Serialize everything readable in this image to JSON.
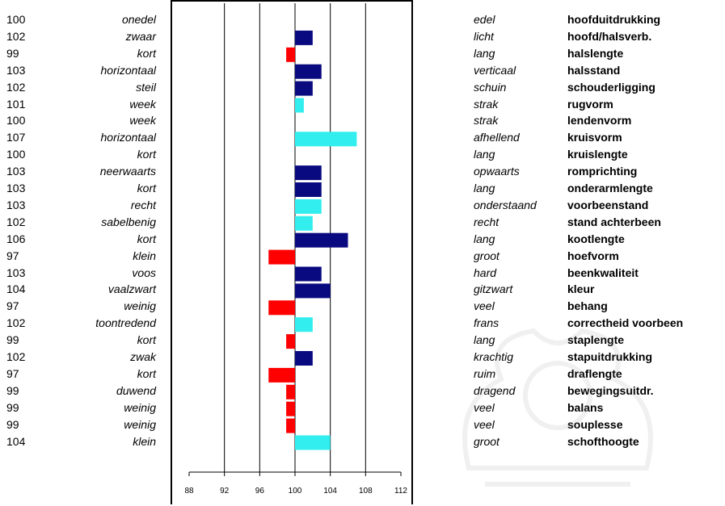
{
  "chart_data": {
    "type": "bar",
    "orientation": "horizontal",
    "baseline": 100,
    "xlim": [
      88,
      112
    ],
    "xticks": [
      "88",
      "92",
      "96",
      "100",
      "104",
      "108",
      "112"
    ],
    "grid": "vertical",
    "legend": "none",
    "rows": [
      {
        "value": 100,
        "score": "100",
        "left": "onedel",
        "right": "edel",
        "trait": "hoofduitdrukking",
        "color": "#0a0a80"
      },
      {
        "value": 102,
        "score": "102",
        "left": "zwaar",
        "right": "licht",
        "trait": "hoofd/halsverb.",
        "color": "#0a0a80"
      },
      {
        "value": 99,
        "score": "99",
        "left": "kort",
        "right": "lang",
        "trait": "halslengte",
        "color": "#ff0000"
      },
      {
        "value": 103,
        "score": "103",
        "left": "horizontaal",
        "right": "verticaal",
        "trait": "halsstand",
        "color": "#0a0a80"
      },
      {
        "value": 102,
        "score": "102",
        "left": "steil",
        "right": "schuin",
        "trait": "schouderligging",
        "color": "#0a0a80"
      },
      {
        "value": 101,
        "score": "101",
        "left": "week",
        "right": "strak",
        "trait": "rugvorm",
        "color": "#33eeee"
      },
      {
        "value": 100,
        "score": "100",
        "left": "week",
        "right": "strak",
        "trait": "lendenvorm",
        "color": "#33eeee"
      },
      {
        "value": 107,
        "score": "107",
        "left": "horizontaal",
        "right": "afhellend",
        "trait": "kruisvorm",
        "color": "#33eeee"
      },
      {
        "value": 100,
        "score": "100",
        "left": "kort",
        "right": "lang",
        "trait": "kruislengte",
        "color": "#33eeee"
      },
      {
        "value": 103,
        "score": "103",
        "left": "neerwaarts",
        "right": "opwaarts",
        "trait": "romprichting",
        "color": "#0a0a80"
      },
      {
        "value": 103,
        "score": "103",
        "left": "kort",
        "right": "lang",
        "trait": "onderarmlengte",
        "color": "#0a0a80"
      },
      {
        "value": 103,
        "score": "103",
        "left": "recht",
        "right": "onderstaand",
        "trait": "voorbeenstand",
        "color": "#33eeee"
      },
      {
        "value": 102,
        "score": "102",
        "left": "sabelbenig",
        "right": "recht",
        "trait": "stand achterbeen",
        "color": "#33eeee"
      },
      {
        "value": 106,
        "score": "106",
        "left": "kort",
        "right": "lang",
        "trait": "kootlengte",
        "color": "#0a0a80"
      },
      {
        "value": 97,
        "score": "97",
        "left": "klein",
        "right": "groot",
        "trait": "hoefvorm",
        "color": "#ff0000"
      },
      {
        "value": 103,
        "score": "103",
        "left": "voos",
        "right": "hard",
        "trait": "beenkwaliteit",
        "color": "#0a0a80"
      },
      {
        "value": 104,
        "score": "104",
        "left": "vaalzwart",
        "right": "gitzwart",
        "trait": "kleur",
        "color": "#0a0a80"
      },
      {
        "value": 97,
        "score": "97",
        "left": "weinig",
        "right": "veel",
        "trait": "behang",
        "color": "#ff0000"
      },
      {
        "value": 102,
        "score": "102",
        "left": "toontredend",
        "right": "frans",
        "trait": "correctheid voorbeen",
        "color": "#33eeee"
      },
      {
        "value": 99,
        "score": "99",
        "left": "kort",
        "right": "lang",
        "trait": "staplengte",
        "color": "#ff0000"
      },
      {
        "value": 102,
        "score": "102",
        "left": "zwak",
        "right": "krachtig",
        "trait": "stapuitdrukking",
        "color": "#0a0a80"
      },
      {
        "value": 97,
        "score": "97",
        "left": "kort",
        "right": "ruim",
        "trait": "draflengte",
        "color": "#ff0000"
      },
      {
        "value": 99,
        "score": "99",
        "left": "duwend",
        "right": "dragend",
        "trait": "bewegingsuitdr.",
        "color": "#ff0000"
      },
      {
        "value": 99,
        "score": "99",
        "left": "weinig",
        "right": "veel",
        "trait": "balans",
        "color": "#ff0000"
      },
      {
        "value": 99,
        "score": "99",
        "left": "weinig",
        "right": "veel",
        "trait": "souplesse",
        "color": "#ff0000"
      },
      {
        "value": 104,
        "score": "104",
        "left": "klein",
        "right": "groot",
        "trait": "schofthoogte",
        "color": "#33eeee"
      }
    ]
  }
}
